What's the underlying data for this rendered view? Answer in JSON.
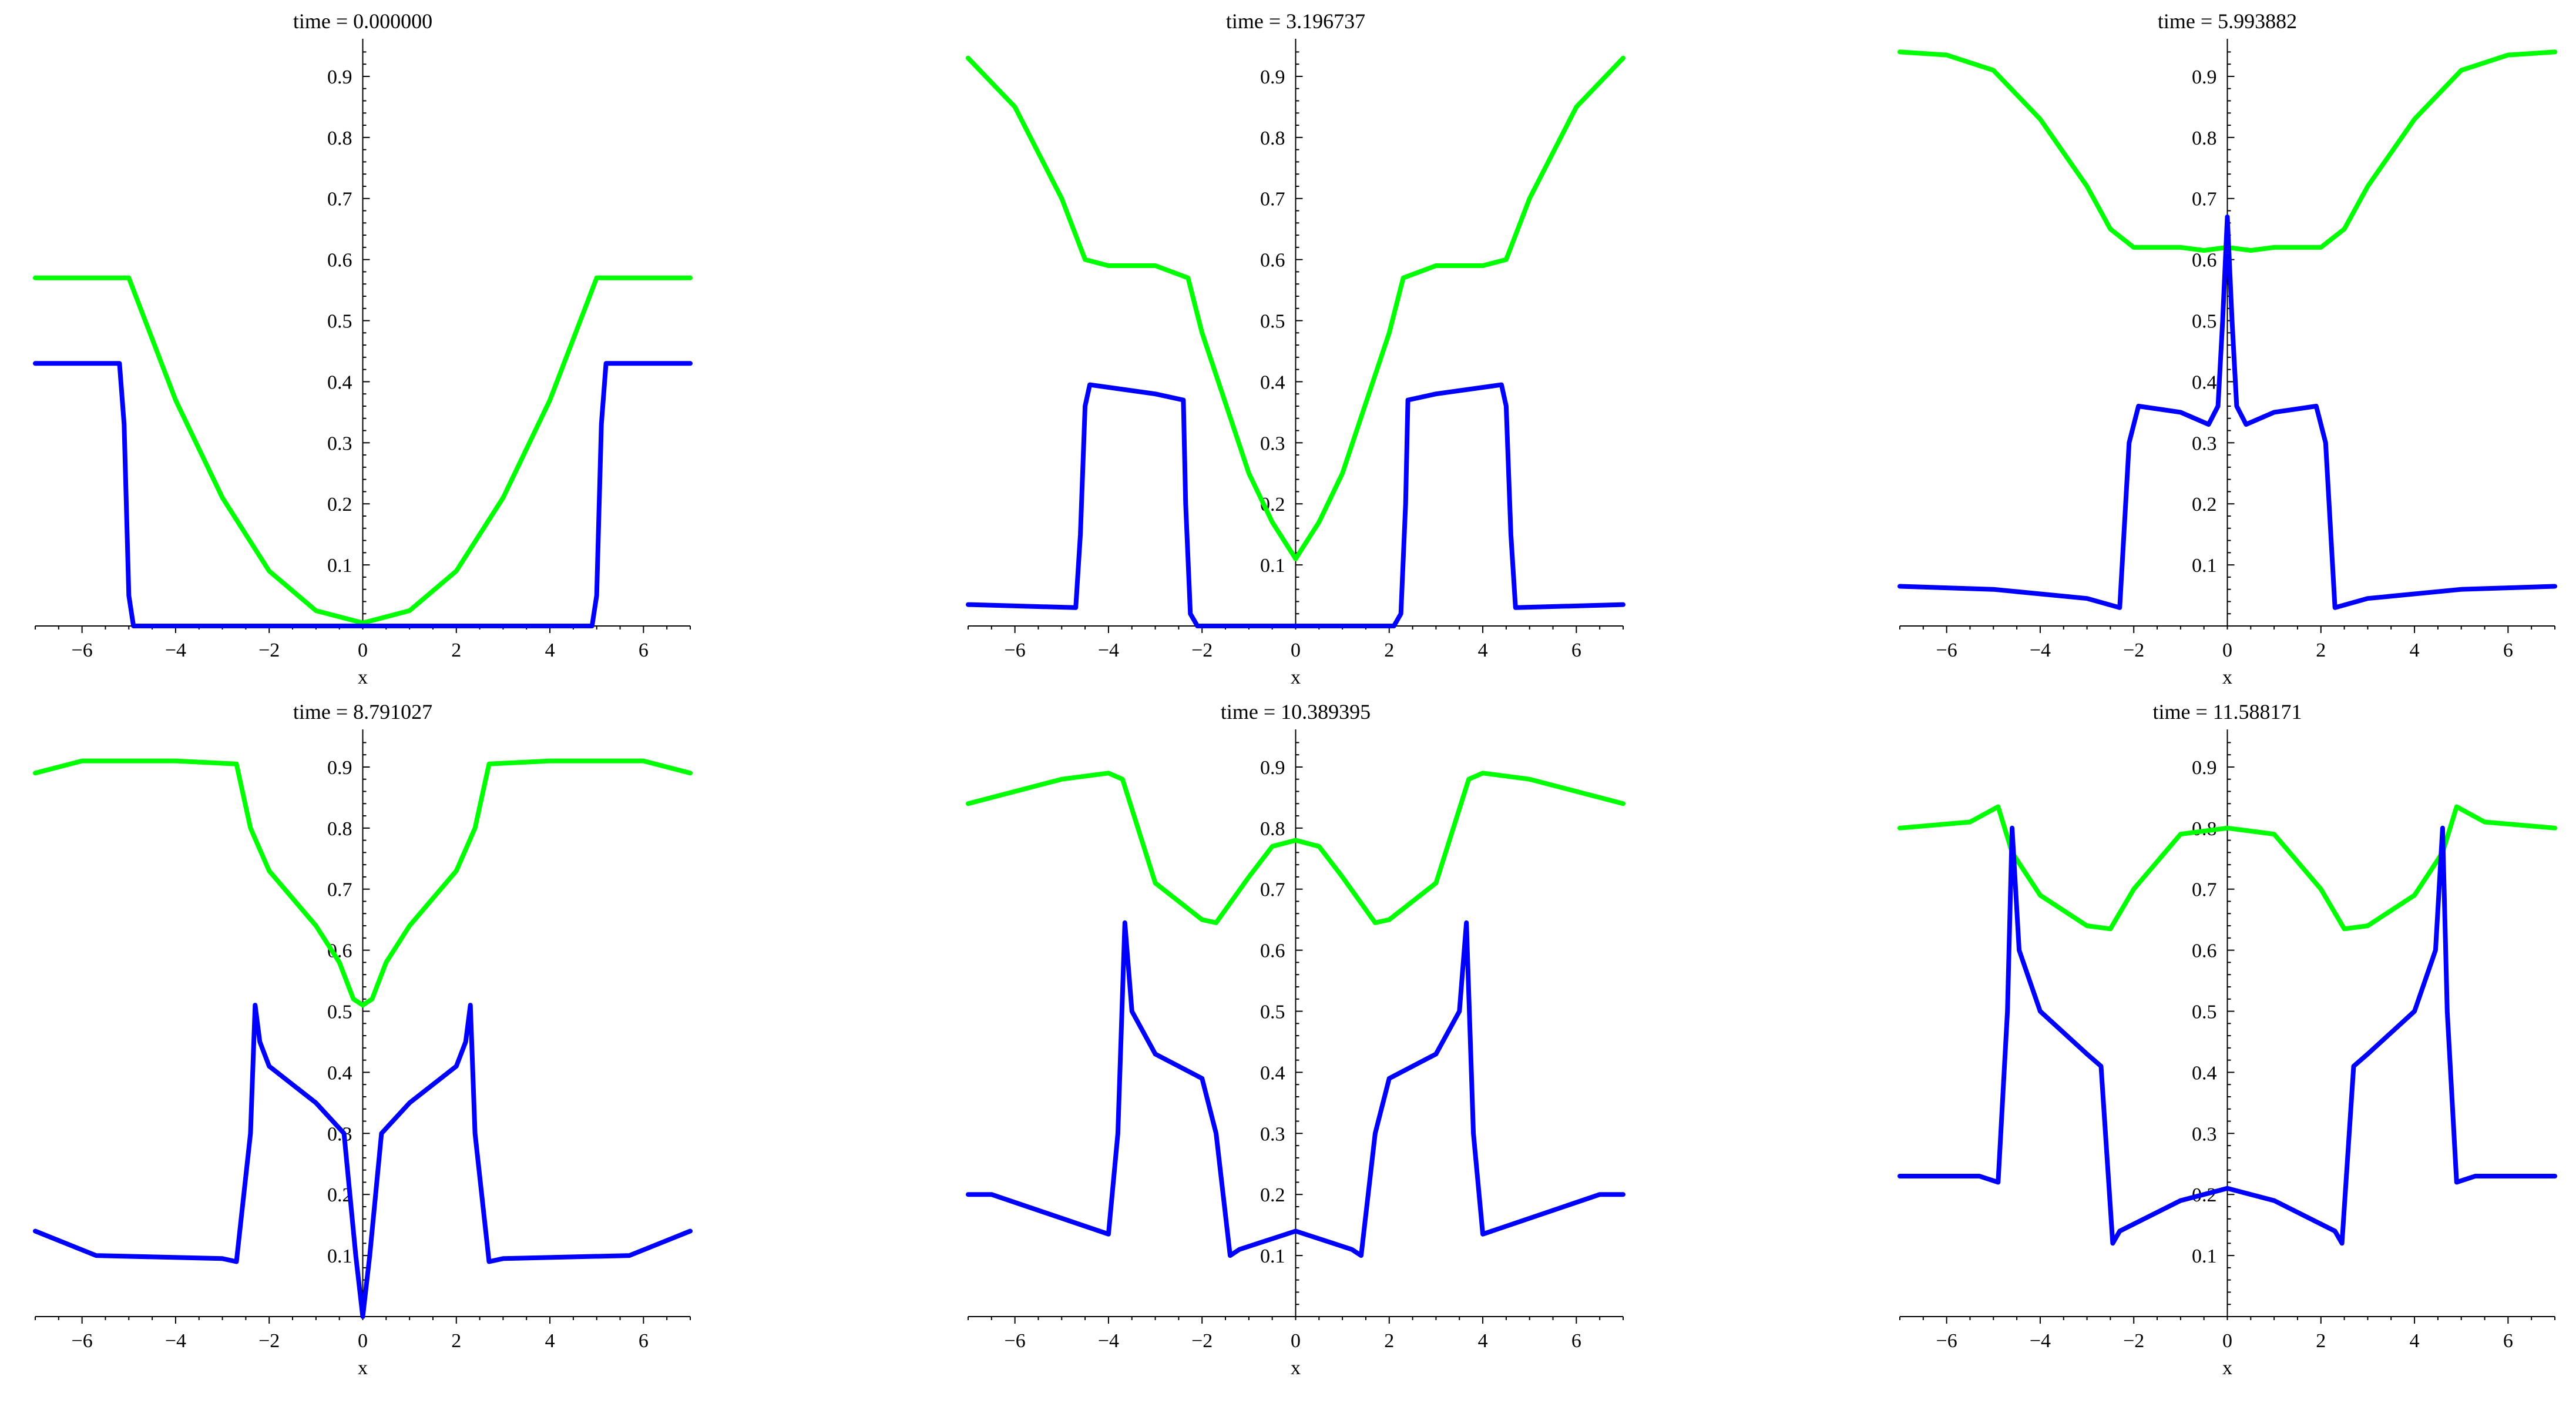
{
  "colors": {
    "green": "#00ff00",
    "blue": "#0000ff",
    "axis": "#000000"
  },
  "chart_data": [
    {
      "type": "line",
      "title": "time = 0.000000",
      "xlabel": "x",
      "xlim": [
        -7,
        7
      ],
      "ylim": [
        0,
        0.95
      ],
      "xticks": [
        -6,
        -4,
        -2,
        0,
        2,
        4,
        6
      ],
      "yticks": [
        0.1,
        0.2,
        0.3,
        0.4,
        0.5,
        0.6,
        0.7,
        0.8,
        0.9
      ],
      "series": [
        {
          "color": "#00ff00",
          "x": [
            -7,
            -5,
            -4,
            -3,
            -2,
            -1,
            0,
            1,
            2,
            3,
            4,
            5,
            7
          ],
          "y": [
            0.57,
            0.57,
            0.37,
            0.21,
            0.09,
            0.025,
            0.005,
            0.025,
            0.09,
            0.21,
            0.37,
            0.57,
            0.57
          ]
        },
        {
          "color": "#0000ff",
          "x": [
            -7,
            -5.2,
            -5.1,
            -5.0,
            -4.9,
            4.9,
            5.0,
            5.1,
            5.2,
            7
          ],
          "y": [
            0.43,
            0.43,
            0.33,
            0.05,
            0.0,
            0.0,
            0.05,
            0.33,
            0.43,
            0.43
          ]
        }
      ]
    },
    {
      "type": "line",
      "title": "time = 3.196737",
      "xlabel": "x",
      "xlim": [
        -7,
        7
      ],
      "ylim": [
        0,
        0.95
      ],
      "xticks": [
        -6,
        -4,
        -2,
        0,
        2,
        4,
        6
      ],
      "yticks": [
        0.1,
        0.2,
        0.3,
        0.4,
        0.5,
        0.6,
        0.7,
        0.8,
        0.9
      ],
      "series": [
        {
          "color": "#00ff00",
          "x": [
            -7,
            -6,
            -5,
            -4.5,
            -4,
            -3,
            -2.3,
            -2,
            -1,
            -0.5,
            0,
            0.5,
            1,
            2,
            2.3,
            3,
            4,
            4.5,
            5,
            6,
            7
          ],
          "y": [
            0.93,
            0.85,
            0.7,
            0.6,
            0.59,
            0.59,
            0.57,
            0.48,
            0.25,
            0.17,
            0.11,
            0.17,
            0.25,
            0.48,
            0.57,
            0.59,
            0.59,
            0.6,
            0.7,
            0.85,
            0.93
          ]
        },
        {
          "color": "#0000ff",
          "x": [
            -7,
            -4.7,
            -4.6,
            -4.5,
            -4.4,
            -3,
            -2.4,
            -2.35,
            -2.25,
            -2.1,
            2.1,
            2.25,
            2.35,
            2.4,
            3,
            4.4,
            4.5,
            4.6,
            4.7,
            7
          ],
          "y": [
            0.035,
            0.03,
            0.15,
            0.36,
            0.395,
            0.38,
            0.37,
            0.2,
            0.02,
            0.0,
            0.0,
            0.02,
            0.2,
            0.37,
            0.38,
            0.395,
            0.36,
            0.15,
            0.03,
            0.035
          ]
        }
      ]
    },
    {
      "type": "line",
      "title": "time = 5.993882",
      "xlabel": "x",
      "xlim": [
        -7,
        7
      ],
      "ylim": [
        0,
        0.95
      ],
      "xticks": [
        -6,
        -4,
        -2,
        0,
        2,
        4,
        6
      ],
      "yticks": [
        0.1,
        0.2,
        0.3,
        0.4,
        0.5,
        0.6,
        0.7,
        0.8,
        0.9
      ],
      "series": [
        {
          "color": "#00ff00",
          "x": [
            -7,
            -6,
            -5,
            -4,
            -3,
            -2.5,
            -2,
            -1,
            -0.5,
            0,
            0.5,
            1,
            2,
            2.5,
            3,
            4,
            5,
            6,
            7
          ],
          "y": [
            0.94,
            0.935,
            0.91,
            0.83,
            0.72,
            0.65,
            0.62,
            0.62,
            0.615,
            0.62,
            0.615,
            0.62,
            0.62,
            0.65,
            0.72,
            0.83,
            0.91,
            0.935,
            0.94
          ]
        },
        {
          "color": "#0000ff",
          "x": [
            -7,
            -5,
            -3,
            -2.3,
            -2.1,
            -1.9,
            -1,
            -0.4,
            -0.2,
            -0.1,
            0,
            0.1,
            0.2,
            0.4,
            1,
            1.9,
            2.1,
            2.3,
            3,
            5,
            7
          ],
          "y": [
            0.065,
            0.06,
            0.045,
            0.03,
            0.3,
            0.36,
            0.35,
            0.33,
            0.36,
            0.5,
            0.67,
            0.5,
            0.36,
            0.33,
            0.35,
            0.36,
            0.3,
            0.03,
            0.045,
            0.06,
            0.065
          ]
        }
      ]
    },
    {
      "type": "line",
      "title": "time = 8.791027",
      "xlabel": "x",
      "xlim": [
        -7,
        7
      ],
      "ylim": [
        0,
        0.95
      ],
      "xticks": [
        -6,
        -4,
        -2,
        0,
        2,
        4,
        6
      ],
      "yticks": [
        0.1,
        0.2,
        0.3,
        0.4,
        0.5,
        0.6,
        0.7,
        0.8,
        0.9
      ],
      "series": [
        {
          "color": "#00ff00",
          "x": [
            -7,
            -6,
            -4,
            -2.7,
            -2.4,
            -2,
            -1,
            -0.5,
            -0.2,
            0,
            0.2,
            0.5,
            1,
            2,
            2.4,
            2.7,
            4,
            6,
            7
          ],
          "y": [
            0.89,
            0.91,
            0.91,
            0.905,
            0.8,
            0.73,
            0.64,
            0.58,
            0.52,
            0.51,
            0.52,
            0.58,
            0.64,
            0.73,
            0.8,
            0.905,
            0.91,
            0.91,
            0.89
          ]
        },
        {
          "color": "#0000ff",
          "x": [
            -7,
            -5.7,
            -3,
            -2.7,
            -2.4,
            -2.3,
            -2.2,
            -2,
            -1,
            -0.4,
            -0.15,
            0,
            0.15,
            0.4,
            1,
            2,
            2.2,
            2.3,
            2.4,
            2.7,
            3,
            5.7,
            7
          ],
          "y": [
            0.14,
            0.1,
            0.095,
            0.09,
            0.3,
            0.51,
            0.45,
            0.41,
            0.35,
            0.3,
            0.1,
            0.0,
            0.1,
            0.3,
            0.35,
            0.41,
            0.45,
            0.51,
            0.3,
            0.09,
            0.095,
            0.1,
            0.14
          ]
        }
      ]
    },
    {
      "type": "line",
      "title": "time = 10.389395",
      "xlabel": "x",
      "xlim": [
        -7,
        7
      ],
      "ylim": [
        0,
        0.95
      ],
      "xticks": [
        -6,
        -4,
        -2,
        0,
        2,
        4,
        6
      ],
      "yticks": [
        0.1,
        0.2,
        0.3,
        0.4,
        0.5,
        0.6,
        0.7,
        0.8,
        0.9
      ],
      "series": [
        {
          "color": "#00ff00",
          "x": [
            -7,
            -5,
            -4,
            -3.7,
            -3,
            -2,
            -1.7,
            -1,
            -0.5,
            0,
            0.5,
            1,
            1.7,
            2,
            3,
            3.7,
            4,
            5,
            7
          ],
          "y": [
            0.84,
            0.88,
            0.89,
            0.88,
            0.71,
            0.65,
            0.645,
            0.72,
            0.77,
            0.78,
            0.77,
            0.72,
            0.645,
            0.65,
            0.71,
            0.88,
            0.89,
            0.88,
            0.84
          ]
        },
        {
          "color": "#0000ff",
          "x": [
            -7,
            -6.5,
            -4,
            -3.8,
            -3.65,
            -3.5,
            -3,
            -2,
            -1.7,
            -1.4,
            -1.2,
            0,
            1.2,
            1.4,
            1.7,
            2,
            3,
            3.5,
            3.65,
            3.8,
            4,
            6.5,
            7
          ],
          "y": [
            0.2,
            0.2,
            0.135,
            0.3,
            0.645,
            0.5,
            0.43,
            0.39,
            0.3,
            0.1,
            0.11,
            0.14,
            0.11,
            0.1,
            0.3,
            0.39,
            0.43,
            0.5,
            0.645,
            0.3,
            0.135,
            0.2,
            0.2
          ]
        }
      ]
    },
    {
      "type": "line",
      "title": "time = 11.588171",
      "xlabel": "x",
      "xlim": [
        -7,
        7
      ],
      "ylim": [
        0,
        0.95
      ],
      "xticks": [
        -6,
        -4,
        -2,
        0,
        2,
        4,
        6
      ],
      "yticks": [
        0.1,
        0.2,
        0.3,
        0.4,
        0.5,
        0.6,
        0.7,
        0.8,
        0.9
      ],
      "series": [
        {
          "color": "#00ff00",
          "x": [
            -7,
            -5.5,
            -4.9,
            -4.6,
            -4,
            -3,
            -2.5,
            -2,
            -1,
            0,
            1,
            2,
            2.5,
            3,
            4,
            4.6,
            4.9,
            5.5,
            7
          ],
          "y": [
            0.8,
            0.81,
            0.835,
            0.76,
            0.69,
            0.64,
            0.635,
            0.7,
            0.79,
            0.8,
            0.79,
            0.7,
            0.635,
            0.64,
            0.69,
            0.76,
            0.835,
            0.81,
            0.8
          ]
        },
        {
          "color": "#0000ff",
          "x": [
            -7,
            -5.3,
            -4.9,
            -4.7,
            -4.6,
            -4.45,
            -4,
            -3,
            -2.7,
            -2.45,
            -2.3,
            -1,
            0,
            1,
            2.3,
            2.45,
            2.7,
            3,
            4,
            4.45,
            4.6,
            4.7,
            4.9,
            5.3,
            7
          ],
          "y": [
            0.23,
            0.23,
            0.22,
            0.5,
            0.8,
            0.6,
            0.5,
            0.43,
            0.41,
            0.12,
            0.14,
            0.19,
            0.21,
            0.19,
            0.14,
            0.12,
            0.41,
            0.43,
            0.5,
            0.6,
            0.8,
            0.5,
            0.22,
            0.23,
            0.23
          ]
        }
      ]
    }
  ]
}
